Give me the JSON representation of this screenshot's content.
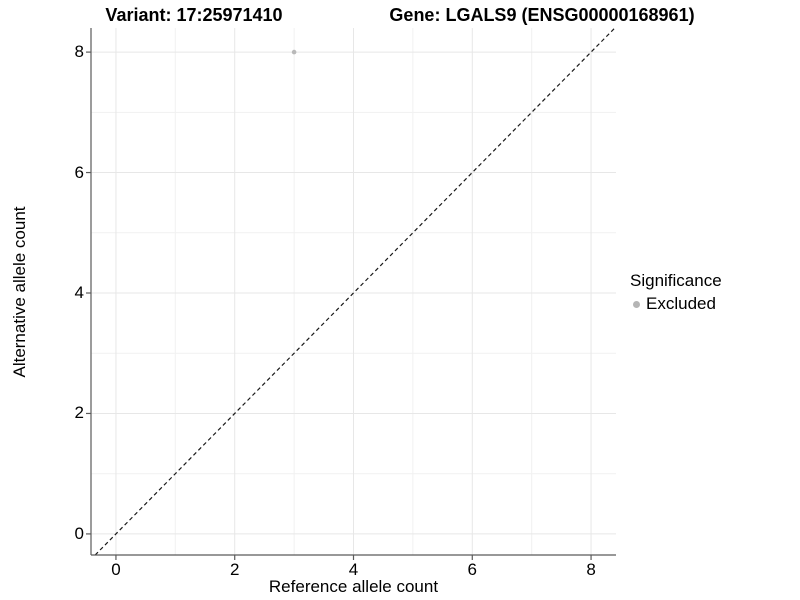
{
  "chart_data": {
    "type": "scatter",
    "title_left": "Variant: 17:25971410",
    "title_right": "Gene: LGALS9 (ENSG00000168961)",
    "xlabel": "Reference allele count",
    "ylabel": "Alternative allele count",
    "xlim": [
      -0.42,
      8.42
    ],
    "ylim": [
      -0.35,
      8.4
    ],
    "x_breaks": [
      0,
      2,
      4,
      6,
      8
    ],
    "y_breaks": [
      0,
      2,
      4,
      6,
      8
    ],
    "x_minor_breaks": [
      1,
      3,
      5,
      7
    ],
    "y_minor_breaks": [
      1,
      3,
      5,
      7
    ],
    "grid": "major+minor",
    "points": [
      {
        "x": 3,
        "y": 8,
        "series": "Excluded"
      }
    ],
    "point_radius": 2.3,
    "reference_line": {
      "slope": 1,
      "intercept": 0,
      "linetype": "dashed"
    },
    "legend": {
      "position": "right",
      "title": "Significance",
      "entries": [
        {
          "label": "Excluded",
          "color": "#b5b5b5"
        }
      ]
    },
    "colors": {
      "background": "#ffffff",
      "grid_major": "#e7e7e7",
      "grid_minor": "#f1f1f1",
      "axis_line": "#5a5a5a",
      "tick": "#5a5a5a",
      "text": "#000000",
      "point": "#b9b9b9",
      "reference_line": "#1a1a1a"
    }
  }
}
